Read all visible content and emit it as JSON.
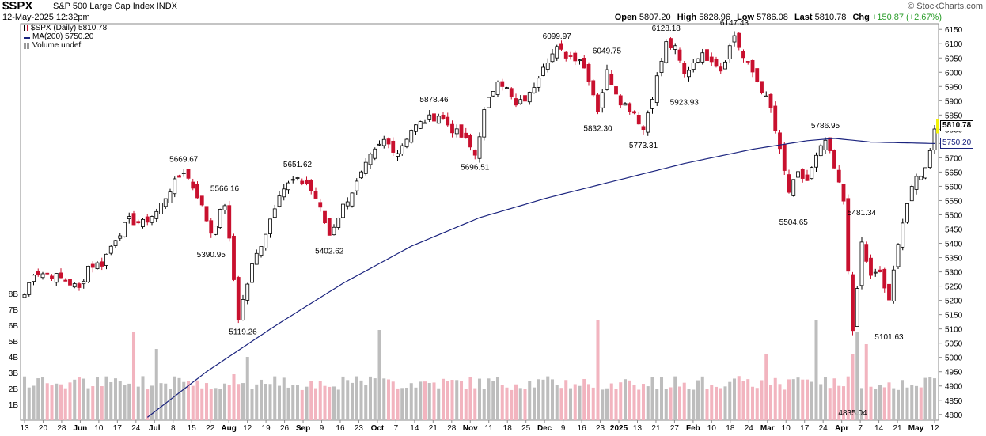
{
  "header": {
    "symbol": "$SPX",
    "name": "S&P 500 Large Cap Index",
    "exchange": "INDX",
    "date": "12-May-2025 12:32pm",
    "brand": "© StockCharts.com",
    "open_label": "Open",
    "open": "5807.20",
    "high_label": "High",
    "high": "5828.96",
    "low_label": "Low",
    "low": "5786.08",
    "last_label": "Last",
    "last": "5810.78",
    "chg_label": "Chg",
    "chg": "+150.87 (+2.67%)",
    "chg_color": "#2a9d2a"
  },
  "legend": {
    "price": "$SPX (Daily) 5810.78",
    "ma": "MA(200) 5750.20",
    "volume": "Volume undef"
  },
  "colors": {
    "up": "#000000",
    "down": "#c8102e",
    "ma": "#1a237e",
    "vol_up": "#bdbdbd",
    "vol_down": "#f2b4bf",
    "last_box": "#f2f20a"
  },
  "chart_data": {
    "type": "candlestick",
    "title": "$SPX S&P 500 Large Cap Index",
    "y_axis": {
      "side": "right",
      "ticks": [
        4800,
        4850,
        4900,
        4950,
        5000,
        5050,
        5100,
        5150,
        5200,
        5250,
        5300,
        5350,
        5400,
        5450,
        5500,
        5550,
        5600,
        5650,
        5700,
        5750,
        5800,
        5850,
        5900,
        5950,
        6000,
        6050,
        6100,
        6150
      ],
      "ylim": [
        4780,
        6170
      ]
    },
    "volume_axis": {
      "side": "left",
      "ticks": [
        "1B",
        "2B",
        "3B",
        "4B",
        "5B",
        "6B",
        "7B",
        "8B"
      ],
      "tick_values": [
        1,
        2,
        3,
        4,
        5,
        6,
        7,
        8
      ],
      "unit": "B"
    },
    "x_ticks": [
      "13",
      "20",
      "28",
      "Jun",
      "10",
      "17",
      "24",
      "Jul",
      "8",
      "15",
      "22",
      "Aug",
      "12",
      "19",
      "26",
      "Sep",
      "9",
      "16",
      "23",
      "Oct",
      "7",
      "14",
      "21",
      "28",
      "Nov",
      "11",
      "18",
      "25",
      "Dec",
      "9",
      "16",
      "23",
      "2025",
      "13",
      "21",
      "27",
      "Feb",
      "10",
      "18",
      "24",
      "Mar",
      "10",
      "17",
      "24",
      "Apr",
      "7",
      "14",
      "21",
      "May",
      "12"
    ],
    "x_bold_ticks": [
      "Jun",
      "Jul",
      "Aug",
      "Sep",
      "Oct",
      "Nov",
      "Dec",
      "2025",
      "Feb",
      "Mar",
      "Apr",
      "May"
    ],
    "annotations": [
      {
        "label": "5669.67",
        "t": 35,
        "v": 5669.67,
        "pos": "above"
      },
      {
        "label": "5566.16",
        "t": 44,
        "v": 5566.16,
        "pos": "above"
      },
      {
        "label": "5390.95",
        "t": 41,
        "v": 5390.95,
        "pos": "below"
      },
      {
        "label": "5119.26",
        "t": 48,
        "v": 5119.26,
        "pos": "below"
      },
      {
        "label": "5651.62",
        "t": 60,
        "v": 5651.62,
        "pos": "above"
      },
      {
        "label": "5402.62",
        "t": 67,
        "v": 5402.62,
        "pos": "below"
      },
      {
        "label": "5878.46",
        "t": 90,
        "v": 5878.46,
        "pos": "above"
      },
      {
        "label": "5696.51",
        "t": 99,
        "v": 5696.51,
        "pos": "below"
      },
      {
        "label": "6099.97",
        "t": 117,
        "v": 6099.97,
        "pos": "above"
      },
      {
        "label": "6049.75",
        "t": 128,
        "v": 6049.75,
        "pos": "above"
      },
      {
        "label": "5832.30",
        "t": 126,
        "v": 5832.3,
        "pos": "below"
      },
      {
        "label": "6128.18",
        "t": 141,
        "v": 6128.18,
        "pos": "above"
      },
      {
        "label": "5773.31",
        "t": 136,
        "v": 5773.31,
        "pos": "below"
      },
      {
        "label": "6147.43",
        "t": 156,
        "v": 6147.43,
        "pos": "above"
      },
      {
        "label": "5923.93",
        "t": 145,
        "v": 5923.93,
        "pos": "below"
      },
      {
        "label": "5786.95",
        "t": 176,
        "v": 5786.95,
        "pos": "above"
      },
      {
        "label": "5504.65",
        "t": 169,
        "v": 5504.65,
        "pos": "below"
      },
      {
        "label": "5481.34",
        "t": 184,
        "v": 5481.34,
        "pos": "above"
      },
      {
        "label": "4835.04",
        "t": 182,
        "v": 4835.04,
        "pos": "below"
      },
      {
        "label": "5101.63",
        "t": 190,
        "v": 5101.63,
        "pos": "below"
      }
    ],
    "last_price": {
      "label": "5810.78",
      "v": 5810.78
    },
    "ma_value": {
      "label": "5750.20",
      "v": 5750.2
    },
    "anchors": [
      [
        0,
        5220
      ],
      [
        2,
        5300
      ],
      [
        6,
        5290
      ],
      [
        9,
        5270
      ],
      [
        12,
        5240
      ],
      [
        14,
        5320
      ],
      [
        17,
        5330
      ],
      [
        20,
        5420
      ],
      [
        23,
        5480
      ],
      [
        26,
        5470
      ],
      [
        29,
        5510
      ],
      [
        32,
        5590
      ],
      [
        35,
        5655
      ],
      [
        38,
        5570
      ],
      [
        41,
        5440
      ],
      [
        44,
        5540
      ],
      [
        47,
        5140
      ],
      [
        50,
        5320
      ],
      [
        53,
        5440
      ],
      [
        56,
        5580
      ],
      [
        59,
        5620
      ],
      [
        62,
        5610
      ],
      [
        64,
        5560
      ],
      [
        67,
        5430
      ],
      [
        70,
        5530
      ],
      [
        73,
        5610
      ],
      [
        76,
        5700
      ],
      [
        79,
        5760
      ],
      [
        82,
        5720
      ],
      [
        85,
        5800
      ],
      [
        88,
        5830
      ],
      [
        91,
        5850
      ],
      [
        94,
        5800
      ],
      [
        97,
        5760
      ],
      [
        99,
        5710
      ],
      [
        101,
        5860
      ],
      [
        104,
        5980
      ],
      [
        106,
        5940
      ],
      [
        108,
        5880
      ],
      [
        111,
        5920
      ],
      [
        114,
        6030
      ],
      [
        117,
        6080
      ],
      [
        119,
        6060
      ],
      [
        122,
        6050
      ],
      [
        124,
        5980
      ],
      [
        126,
        5870
      ],
      [
        128,
        6000
      ],
      [
        131,
        5900
      ],
      [
        134,
        5860
      ],
      [
        136,
        5800
      ],
      [
        139,
        5980
      ],
      [
        141,
        6100
      ],
      [
        143,
        6080
      ],
      [
        145,
        5990
      ],
      [
        148,
        6060
      ],
      [
        151,
        6050
      ],
      [
        153,
        6010
      ],
      [
        156,
        6130
      ],
      [
        158,
        6050
      ],
      [
        160,
        6000
      ],
      [
        162,
        5940
      ],
      [
        164,
        5870
      ],
      [
        166,
        5720
      ],
      [
        168,
        5580
      ],
      [
        170,
        5640
      ],
      [
        172,
        5620
      ],
      [
        174,
        5700
      ],
      [
        176,
        5760
      ],
      [
        178,
        5660
      ],
      [
        180,
        5550
      ],
      [
        182,
        5080
      ],
      [
        184,
        5400
      ],
      [
        186,
        5280
      ],
      [
        188,
        5300
      ],
      [
        190,
        5190
      ],
      [
        192,
        5410
      ],
      [
        194,
        5540
      ],
      [
        196,
        5630
      ],
      [
        198,
        5660
      ],
      [
        200,
        5810
      ]
    ],
    "ma_anchors": [
      [
        27,
        4790
      ],
      [
        40,
        4950
      ],
      [
        55,
        5110
      ],
      [
        70,
        5260
      ],
      [
        85,
        5390
      ],
      [
        100,
        5490
      ],
      [
        115,
        5560
      ],
      [
        130,
        5620
      ],
      [
        145,
        5680
      ],
      [
        160,
        5730
      ],
      [
        172,
        5760
      ],
      [
        178,
        5768
      ],
      [
        186,
        5755
      ],
      [
        200,
        5750
      ]
    ],
    "volume_spikes": [
      [
        24,
        5.6
      ],
      [
        29,
        4.5
      ],
      [
        46,
        2.9
      ],
      [
        49,
        4.0
      ],
      [
        78,
        5.7
      ],
      [
        126,
        6.3
      ],
      [
        163,
        4.2
      ],
      [
        174,
        6.3
      ],
      [
        182,
        4.2
      ],
      [
        183,
        5.6
      ],
      [
        185,
        4.8
      ]
    ]
  }
}
